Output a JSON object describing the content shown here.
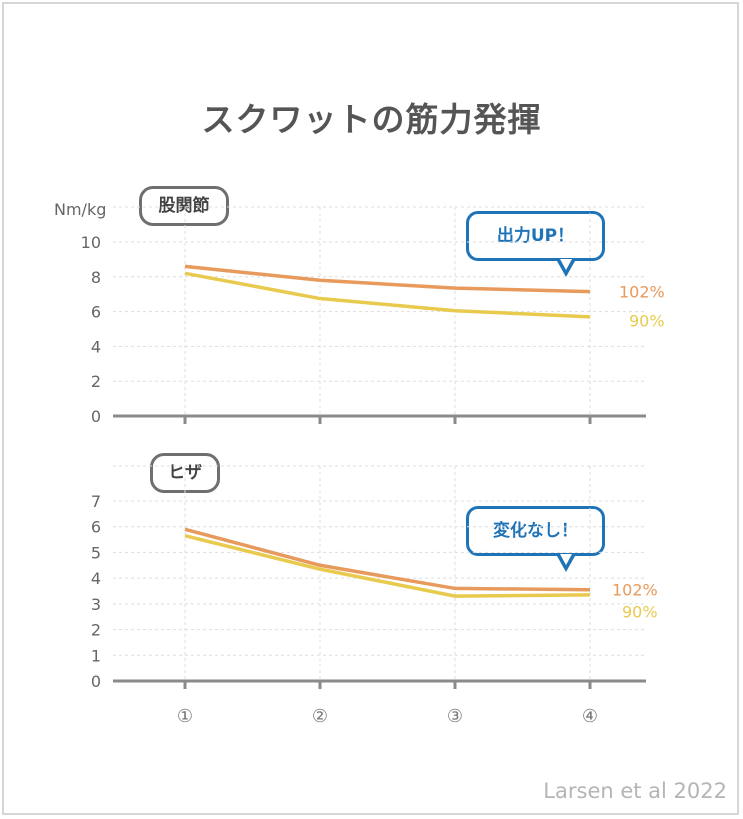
{
  "title": "スクワットの筋力発揮",
  "source": "Larsen et al 2022",
  "chart_data": [
    {
      "type": "line",
      "panel_label": "股関節",
      "ylabel": "Nm/kg",
      "yticks": [
        0,
        2,
        4,
        6,
        8,
        10
      ],
      "ylim": [
        0,
        10
      ],
      "categories": [
        "①",
        "②",
        "③",
        "④"
      ],
      "grid": true,
      "series": [
        {
          "name": "102%",
          "color": "#e89a5c",
          "values": [
            8.6,
            7.8,
            7.35,
            7.15
          ]
        },
        {
          "name": "90%",
          "color": "#e8ca4e",
          "values": [
            8.2,
            6.75,
            6.05,
            5.7
          ]
        }
      ],
      "callout": "出力UP！"
    },
    {
      "type": "line",
      "panel_label": "ヒザ",
      "ylabel": "",
      "yticks": [
        0,
        1,
        2,
        3,
        4,
        5,
        6,
        7
      ],
      "ylim": [
        0,
        7
      ],
      "categories": [
        "①",
        "②",
        "③",
        "④"
      ],
      "grid": true,
      "series": [
        {
          "name": "102%",
          "color": "#e89a5c",
          "values": [
            5.9,
            4.5,
            3.6,
            3.55
          ]
        },
        {
          "name": "90%",
          "color": "#e8ca4e",
          "values": [
            5.65,
            4.35,
            3.3,
            3.35
          ]
        }
      ],
      "callout": "変化なし！"
    }
  ]
}
